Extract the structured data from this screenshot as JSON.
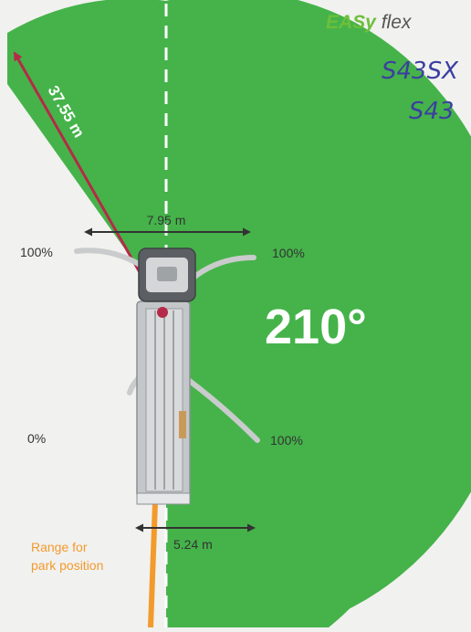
{
  "brand": {
    "name_bold": "EASy",
    "name_light": " flex",
    "bold_color": "#6cbf3b",
    "light_color": "#555555"
  },
  "handwritten_notes": [
    "S43SX",
    "S43"
  ],
  "slewing_range": {
    "angle_label": "210°",
    "radius_label": "37.55 m",
    "sector_color": "#45b34a",
    "radius_arrow_color": "#b52a48"
  },
  "dimensions": {
    "front_width_label": "7.95 m",
    "rear_width_label": "5.24 m"
  },
  "outrigger_extensions": {
    "front_left": "100%",
    "front_right": "100%",
    "rear_left": "0%",
    "rear_right": "100%"
  },
  "park_range": {
    "label_line1": "Range for",
    "label_line2": "park position",
    "color": "#f39a2d"
  }
}
